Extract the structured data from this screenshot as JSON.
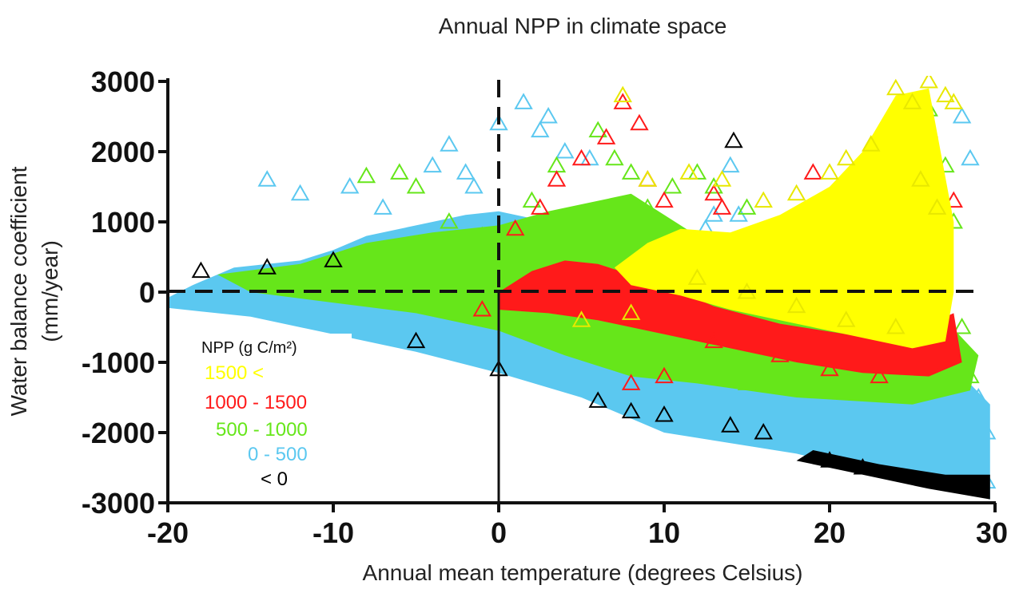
{
  "chart_data": {
    "type": "scatter",
    "title": "Annual NPP in climate space",
    "xlabel": "Annual mean temperature (degrees Celsius)",
    "ylabel_line1": "Water balance coefficient",
    "ylabel_line2": "(mm/year)",
    "xlim": [
      -20,
      30
    ],
    "ylim": [
      -3000,
      3000
    ],
    "x_ticks": [
      -20,
      -10,
      0,
      10,
      20,
      30
    ],
    "x_tick_labels": [
      "-20",
      "-10",
      "0",
      "10",
      "20",
      "30"
    ],
    "y_ticks": [
      3000,
      2000,
      1000,
      0,
      -1000,
      -2000,
      -3000
    ],
    "y_tick_labels": [
      "3000",
      "2000",
      "1000",
      "0",
      "-1000",
      "-2000",
      "-3000"
    ],
    "reference_lines": {
      "x": 0,
      "y": 0,
      "style": "dashed"
    },
    "legend": {
      "title": "NPP (g C/m²)",
      "placement": "lower-left",
      "entries": [
        {
          "label": "1500 <",
          "color": "#ffff00"
        },
        {
          "label": "1000 - 1500",
          "color": "#ff1a1a"
        },
        {
          "label": "500 - 1000",
          "color": "#66e61a"
        },
        {
          "label": "0 - 500",
          "color": "#5bc8f0"
        },
        {
          "label": "< 0",
          "color": "#000000"
        }
      ]
    },
    "series": [
      {
        "name": "0 - 500",
        "color": "#5bc8f0",
        "region_points": [
          [
            -21,
            -200
          ],
          [
            -18.5,
            100
          ],
          [
            -16,
            350
          ],
          [
            -12,
            450
          ],
          [
            -10,
            600
          ],
          [
            -8,
            800
          ],
          [
            -5,
            950
          ],
          [
            -2,
            1100
          ],
          [
            0,
            1150
          ],
          [
            2,
            1050
          ],
          [
            6,
            600
          ],
          [
            10,
            300
          ],
          [
            15,
            0
          ],
          [
            20,
            -300
          ],
          [
            26,
            -700
          ],
          [
            29.7,
            -1600
          ],
          [
            29.7,
            -2950
          ],
          [
            25,
            -2700
          ],
          [
            18,
            -2300
          ],
          [
            10,
            -2000
          ],
          [
            5,
            -1500
          ],
          [
            0,
            -1150
          ],
          [
            -5,
            -850
          ],
          [
            -10,
            -600
          ],
          [
            -15,
            -350
          ]
        ],
        "markers": [
          [
            -14,
            1600
          ],
          [
            -12,
            1400
          ],
          [
            -9,
            1500
          ],
          [
            -7,
            1200
          ],
          [
            -4,
            1800
          ],
          [
            -3,
            2100
          ],
          [
            -2,
            1700
          ],
          [
            -1.5,
            1500
          ],
          [
            0,
            2400
          ],
          [
            1.5,
            2700
          ],
          [
            2.5,
            2300
          ],
          [
            3,
            2500
          ],
          [
            4,
            2000
          ],
          [
            5.5,
            1900
          ],
          [
            12.5,
            900
          ],
          [
            13,
            1100
          ],
          [
            14,
            1800
          ],
          [
            14.5,
            1100
          ],
          [
            28.5,
            1900
          ],
          [
            28,
            2500
          ],
          [
            29,
            -1500
          ],
          [
            29.5,
            -2000
          ],
          [
            29.5,
            -2700
          ]
        ]
      },
      {
        "name": "500 - 1000",
        "color": "#66e61a",
        "region_points": [
          [
            -17,
            250
          ],
          [
            -12,
            400
          ],
          [
            -8,
            700
          ],
          [
            -4,
            850
          ],
          [
            0,
            950
          ],
          [
            3,
            1150
          ],
          [
            8,
            1400
          ],
          [
            12,
            800
          ],
          [
            16,
            400
          ],
          [
            22,
            0
          ],
          [
            27,
            -400
          ],
          [
            29,
            -900
          ],
          [
            28.5,
            -1400
          ],
          [
            25,
            -1600
          ],
          [
            18,
            -1500
          ],
          [
            12,
            -1300
          ],
          [
            8,
            -1200
          ],
          [
            4,
            -900
          ],
          [
            0,
            -550
          ],
          [
            -5,
            -300
          ],
          [
            -10,
            -150
          ],
          [
            -15,
            0
          ]
        ],
        "markers": [
          [
            -8,
            1650
          ],
          [
            -6,
            1700
          ],
          [
            -5,
            1500
          ],
          [
            -3,
            1000
          ],
          [
            -1,
            800
          ],
          [
            2,
            1300
          ],
          [
            3.5,
            1800
          ],
          [
            6,
            2300
          ],
          [
            7,
            1900
          ],
          [
            8,
            1700
          ],
          [
            9,
            1200
          ],
          [
            10.5,
            1500
          ],
          [
            12,
            1700
          ],
          [
            13,
            1500
          ],
          [
            15,
            1200
          ],
          [
            17,
            900
          ],
          [
            18,
            800
          ],
          [
            22,
            1700
          ],
          [
            24,
            2200
          ],
          [
            26,
            2600
          ],
          [
            27,
            1800
          ],
          [
            27.5,
            1000
          ],
          [
            28,
            -500
          ],
          [
            28.5,
            -1200
          ],
          [
            20,
            -1400
          ],
          [
            15,
            -1300
          ],
          [
            10,
            -1100
          ],
          [
            5,
            -800
          ]
        ]
      },
      {
        "name": "1000 - 1500",
        "color": "#ff1a1a",
        "region_points": [
          [
            0,
            0
          ],
          [
            2,
            300
          ],
          [
            4,
            450
          ],
          [
            6,
            400
          ],
          [
            8,
            250
          ],
          [
            10,
            100
          ],
          [
            13,
            -200
          ],
          [
            17,
            -450
          ],
          [
            21,
            -600
          ],
          [
            25,
            -550
          ],
          [
            27.5,
            -300
          ],
          [
            28,
            -1000
          ],
          [
            26,
            -1200
          ],
          [
            22,
            -1150
          ],
          [
            18,
            -1000
          ],
          [
            14,
            -800
          ],
          [
            10,
            -600
          ],
          [
            6,
            -400
          ],
          [
            3,
            -300
          ],
          [
            0,
            -250
          ]
        ],
        "markers": [
          [
            1,
            900
          ],
          [
            2.5,
            1200
          ],
          [
            3.5,
            1600
          ],
          [
            5,
            1900
          ],
          [
            6.5,
            2200
          ],
          [
            7.5,
            2700
          ],
          [
            8.5,
            2400
          ],
          [
            9,
            1600
          ],
          [
            10,
            1300
          ],
          [
            13,
            1400
          ],
          [
            13.5,
            1200
          ],
          [
            19,
            1700
          ],
          [
            21,
            1200
          ],
          [
            25,
            2500
          ],
          [
            26,
            2300
          ],
          [
            27.5,
            1300
          ],
          [
            27,
            -700
          ],
          [
            26,
            -1000
          ],
          [
            23,
            -1200
          ],
          [
            20,
            -1100
          ],
          [
            17,
            -900
          ],
          [
            13,
            -700
          ],
          [
            10,
            -1200
          ],
          [
            8,
            -1300
          ],
          [
            -1,
            -250
          ]
        ]
      },
      {
        "name": "1500 <",
        "color": "#ffff00",
        "region_points": [
          [
            7,
            350
          ],
          [
            9,
            700
          ],
          [
            11,
            900
          ],
          [
            14,
            850
          ],
          [
            17,
            1100
          ],
          [
            20,
            1500
          ],
          [
            22,
            2000
          ],
          [
            24,
            2800
          ],
          [
            26,
            2900
          ],
          [
            27.5,
            1000
          ],
          [
            27.5,
            0
          ],
          [
            27,
            -700
          ],
          [
            25,
            -800
          ],
          [
            22,
            -650
          ],
          [
            18,
            -450
          ],
          [
            14,
            -250
          ],
          [
            11,
            -50
          ],
          [
            8,
            100
          ]
        ],
        "markers": [
          [
            7.5,
            2800
          ],
          [
            9,
            1600
          ],
          [
            11.5,
            1700
          ],
          [
            13.5,
            1600
          ],
          [
            16,
            1300
          ],
          [
            18,
            1400
          ],
          [
            20,
            1700
          ],
          [
            21,
            1900
          ],
          [
            22.5,
            2100
          ],
          [
            24,
            2900
          ],
          [
            25,
            2700
          ],
          [
            26,
            3000
          ],
          [
            27,
            2800
          ],
          [
            27.5,
            2700
          ],
          [
            25.5,
            1600
          ],
          [
            26.5,
            1200
          ],
          [
            24,
            -500
          ],
          [
            21,
            -400
          ],
          [
            18,
            -200
          ],
          [
            15,
            0
          ],
          [
            12,
            200
          ],
          [
            8,
            -300
          ],
          [
            5,
            -400
          ]
        ]
      },
      {
        "name": "< 0",
        "color": "#000000",
        "region_points": [
          [
            18,
            -2400
          ],
          [
            22,
            -2600
          ],
          [
            26,
            -2800
          ],
          [
            29.7,
            -2950
          ],
          [
            29.7,
            -2600
          ],
          [
            27,
            -2600
          ],
          [
            23,
            -2450
          ],
          [
            19,
            -2250
          ]
        ],
        "markers": [
          [
            -18,
            300
          ],
          [
            -14,
            350
          ],
          [
            -10,
            450
          ],
          [
            -5,
            -700
          ],
          [
            0,
            -1100
          ],
          [
            6,
            -1550
          ],
          [
            8,
            -1700
          ],
          [
            10,
            -1750
          ],
          [
            14,
            -1900
          ],
          [
            16,
            -2000
          ],
          [
            20,
            -2400
          ],
          [
            22,
            -2500
          ],
          [
            14.2,
            2150
          ]
        ]
      }
    ]
  }
}
